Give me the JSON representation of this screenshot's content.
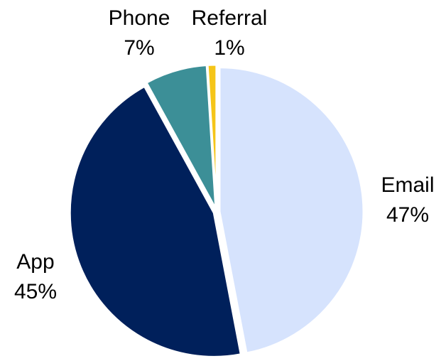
{
  "chart_data": {
    "type": "pie",
    "categories": [
      "Email",
      "App",
      "Phone",
      "Referral"
    ],
    "values": [
      47,
      45,
      7,
      1
    ],
    "value_labels": [
      "47%",
      "45%",
      "7%",
      "1%"
    ],
    "colors": [
      "#d6e3fd",
      "#00205b",
      "#3c8f97",
      "#f5c518"
    ]
  }
}
